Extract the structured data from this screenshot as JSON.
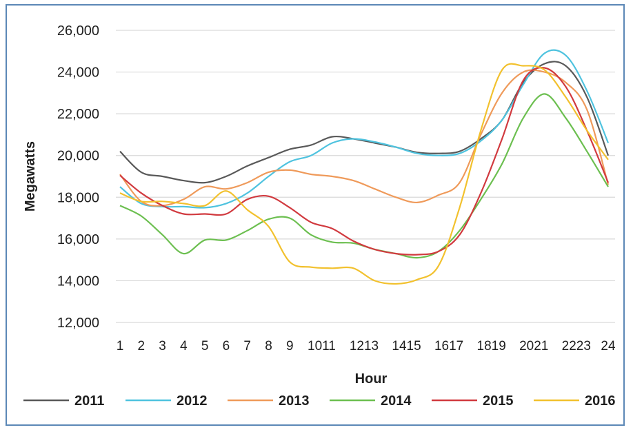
{
  "chart_data": {
    "type": "line",
    "xlabel": "Hour",
    "ylabel": "Megawatts",
    "ylim": [
      12000,
      26000
    ],
    "yticks": [
      12000,
      14000,
      16000,
      18000,
      20000,
      22000,
      24000,
      26000
    ],
    "ytick_labels": [
      "12,000",
      "14,000",
      "16,000",
      "18,000",
      "20,000",
      "22,000",
      "24,000",
      "26,000"
    ],
    "x": [
      1,
      2,
      3,
      4,
      5,
      6,
      7,
      8,
      9,
      10,
      11,
      12,
      13,
      14,
      15,
      16,
      17,
      18,
      19,
      20,
      21,
      22,
      23,
      24
    ],
    "xtick_labels": [
      "1",
      "2",
      "3",
      "4",
      "5",
      "6",
      "7",
      "8",
      "9",
      "1011",
      "1213",
      "1415",
      "1617",
      "1819",
      "2021",
      "2223",
      "24"
    ],
    "grid": "horizontal",
    "legend_position": "bottom",
    "series": [
      {
        "name": "2011",
        "color": "#595959",
        "values": [
          20200,
          19200,
          19000,
          18800,
          18700,
          19000,
          19500,
          19900,
          20300,
          20500,
          20900,
          20800,
          20600,
          20400,
          20150,
          20100,
          20200,
          20800,
          21700,
          23500,
          24400,
          24300,
          22800,
          20000
        ]
      },
      {
        "name": "2012",
        "color": "#4fc3df",
        "values": [
          18500,
          17700,
          17550,
          17550,
          17500,
          17700,
          18200,
          19000,
          19700,
          20000,
          20600,
          20800,
          20650,
          20400,
          20100,
          20000,
          20100,
          20700,
          21700,
          23400,
          24900,
          24800,
          23100,
          20600
        ]
      },
      {
        "name": "2013",
        "color": "#ef9a5a",
        "values": [
          19100,
          17800,
          17600,
          17900,
          18500,
          18400,
          18700,
          19200,
          19300,
          19100,
          19000,
          18800,
          18400,
          18000,
          17750,
          18100,
          18700,
          21000,
          23000,
          24000,
          24000,
          23500,
          22200,
          18600
        ]
      },
      {
        "name": "2014",
        "color": "#6cbf50",
        "values": [
          17600,
          17100,
          16200,
          15300,
          15950,
          15950,
          16400,
          16950,
          17000,
          16200,
          15850,
          15800,
          15500,
          15300,
          15100,
          15400,
          16400,
          17900,
          19600,
          21800,
          22950,
          21800,
          20200,
          18500
        ]
      },
      {
        "name": "2015",
        "color": "#d13a3f",
        "values": [
          19050,
          18200,
          17600,
          17200,
          17200,
          17200,
          17900,
          18050,
          17500,
          16800,
          16500,
          15900,
          15500,
          15300,
          15250,
          15400,
          16200,
          18200,
          20800,
          23600,
          24200,
          23300,
          21200,
          18700
        ]
      },
      {
        "name": "2016",
        "color": "#f2c12e",
        "values": [
          18200,
          17800,
          17800,
          17700,
          17600,
          18300,
          17400,
          16600,
          14900,
          14650,
          14600,
          14600,
          14000,
          13850,
          14050,
          14700,
          17500,
          21200,
          24100,
          24300,
          24100,
          22800,
          21200,
          19800
        ]
      }
    ]
  }
}
